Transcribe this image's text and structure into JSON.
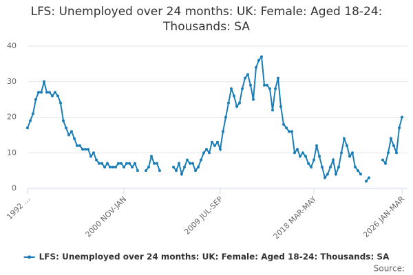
{
  "chart_data": {
    "type": "line",
    "title": "LFS: Unemployed over 24 months: UK: Female: Aged 18-24: Thousands: SA",
    "source": "Source:",
    "categories": [
      "1992 ...",
      null,
      null,
      null,
      null,
      null,
      null,
      null,
      null,
      null,
      null,
      null,
      null,
      null,
      null,
      null,
      null,
      null,
      null,
      null,
      null,
      null,
      null,
      null,
      null,
      null,
      null,
      null,
      null,
      null,
      null,
      null,
      null,
      null,
      null,
      "2000 NOV-JAN",
      null,
      null,
      null,
      null,
      null,
      null,
      null,
      null,
      null,
      null,
      null,
      null,
      null,
      null,
      null,
      null,
      null,
      null,
      null,
      null,
      null,
      null,
      null,
      null,
      null,
      null,
      null,
      null,
      null,
      null,
      null,
      null,
      null,
      null,
      "2009 JUL-SEP",
      null,
      null,
      null,
      null,
      null,
      null,
      null,
      null,
      null,
      null,
      null,
      null,
      null,
      null,
      null,
      null,
      null,
      null,
      null,
      null,
      null,
      null,
      null,
      null,
      null,
      null,
      null,
      null,
      null,
      null,
      null,
      null,
      null,
      "2018 MAR-MAY",
      null,
      null,
      null,
      null,
      null,
      null,
      null,
      null,
      null,
      null,
      null,
      null,
      null,
      null,
      null,
      null,
      null,
      null,
      null,
      null,
      null,
      null,
      null,
      null,
      null,
      null,
      null,
      null,
      null,
      null,
      null,
      "2026 JAN-MAR"
    ],
    "series": [
      {
        "name": "LFS: Unemployed over 24 months: UK: Female: Aged 18-24: Thousands: SA",
        "color": "#1a7db6",
        "values": [
          17,
          19,
          21,
          25,
          27,
          27,
          30,
          27,
          27,
          26,
          27,
          26,
          24,
          19,
          17,
          15,
          16,
          14,
          12,
          12,
          11,
          11,
          11,
          9,
          10,
          8,
          7,
          7,
          6,
          7,
          6,
          6,
          6,
          7,
          7,
          6,
          7,
          7,
          6,
          7,
          5,
          null,
          null,
          5,
          6,
          9,
          7,
          7,
          5,
          null,
          null,
          null,
          null,
          6,
          5,
          7,
          4,
          6,
          8,
          7,
          7,
          5,
          6,
          8,
          10,
          11,
          10,
          13,
          12,
          13,
          11,
          16,
          20,
          24,
          28,
          26,
          23,
          24,
          28,
          31,
          32,
          29,
          25,
          34,
          36,
          37,
          29,
          29,
          28,
          22,
          28,
          31,
          23,
          18,
          17,
          16,
          16,
          10,
          11,
          9,
          10,
          9,
          7,
          6,
          8,
          12,
          9,
          6,
          3,
          4,
          6,
          8,
          4,
          6,
          10,
          14,
          12,
          9,
          10,
          6,
          5,
          4,
          null,
          2,
          3,
          null,
          null,
          null,
          null,
          8,
          7,
          10,
          14,
          12,
          10,
          17,
          20
        ]
      }
    ],
    "ylim": [
      0,
      40
    ],
    "yticks": [
      0,
      10,
      20,
      30,
      40
    ],
    "grid": true
  }
}
